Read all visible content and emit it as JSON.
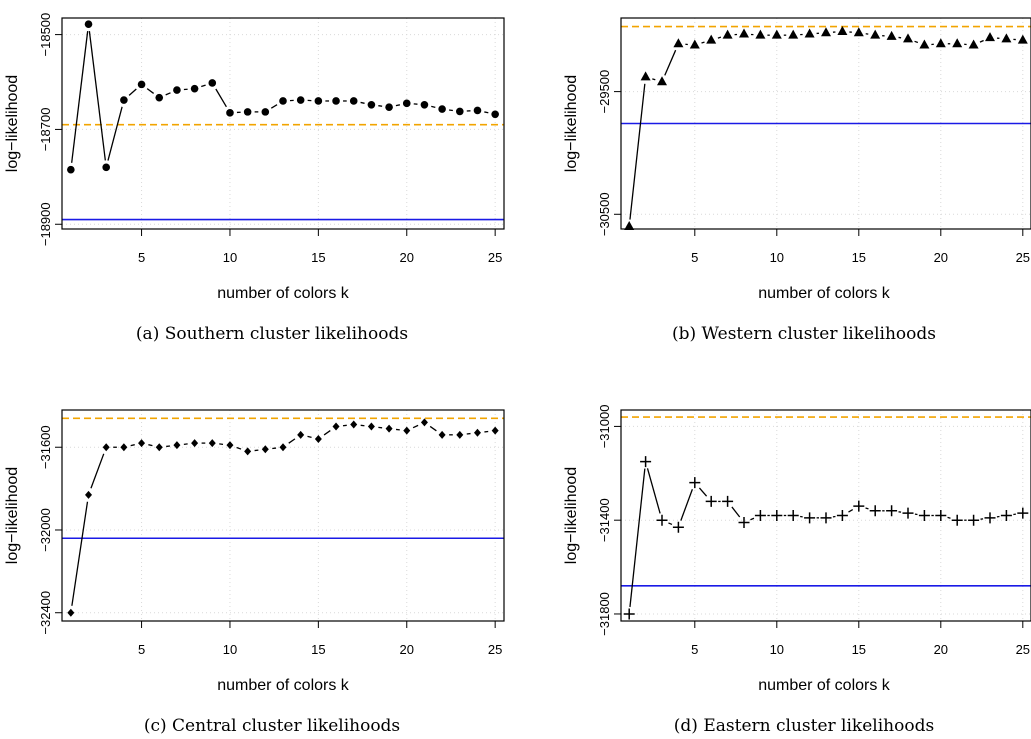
{
  "colors": {
    "reference_blue": "#1a1ae6",
    "reference_orange": "#f2a400",
    "points": "#000000",
    "grid": "#d9d9d9"
  },
  "chart_data": [
    {
      "type": "scatter",
      "caption": "(a) Southern cluster likelihoods",
      "xlabel": "number of colors k",
      "ylabel": "log−likelihood",
      "marker": "circle",
      "xlim": [
        0.5,
        25.5
      ],
      "ylim": [
        -18910,
        -18465
      ],
      "xticks": [
        5,
        10,
        15,
        20,
        25
      ],
      "xtick_labels": [
        "5",
        "10",
        "15",
        "20",
        "25"
      ],
      "yticks": [
        -18500,
        -18700,
        -18900
      ],
      "ytick_labels": [
        "−18500",
        "−18700",
        "−18900"
      ],
      "grid": true,
      "x": [
        1,
        2,
        3,
        4,
        5,
        6,
        7,
        8,
        9,
        10,
        11,
        12,
        13,
        14,
        15,
        16,
        17,
        18,
        19,
        20,
        21,
        22,
        23,
        24,
        25
      ],
      "y": [
        -18785,
        -18478,
        -18780,
        -18638,
        -18605,
        -18633,
        -18617,
        -18614,
        -18602,
        -18665,
        -18663,
        -18663,
        -18640,
        -18638,
        -18640,
        -18640,
        -18640,
        -18648,
        -18653,
        -18645,
        -18648,
        -18657,
        -18662,
        -18660,
        -18668
      ],
      "reference_lines": {
        "solid_blue": -18890,
        "dashed_orange": -18690
      }
    },
    {
      "type": "scatter",
      "caption": "(b) Western cluster likelihoods",
      "xlabel": "number of colors k",
      "ylabel": "log−likelihood",
      "marker": "triangle",
      "xlim": [
        0.5,
        25.5
      ],
      "ylim": [
        -30620,
        -28900
      ],
      "xticks": [
        5,
        10,
        15,
        20,
        25
      ],
      "xtick_labels": [
        "5",
        "10",
        "15",
        "20",
        "25"
      ],
      "yticks": [
        -29500,
        -30500
      ],
      "ytick_labels": [
        "−29500",
        "−30500"
      ],
      "grid": true,
      "x": [
        1,
        2,
        3,
        4,
        5,
        6,
        7,
        8,
        9,
        10,
        11,
        12,
        13,
        14,
        15,
        16,
        17,
        18,
        19,
        20,
        21,
        22,
        23,
        24,
        25
      ],
      "y": [
        -30600,
        -29380,
        -29420,
        -29110,
        -29120,
        -29080,
        -29040,
        -29030,
        -29040,
        -29040,
        -29040,
        -29030,
        -29020,
        -29010,
        -29020,
        -29040,
        -29050,
        -29070,
        -29120,
        -29110,
        -29110,
        -29120,
        -29060,
        -29070,
        -29080
      ],
      "reference_lines": {
        "solid_blue": -29760,
        "dashed_orange": -28970
      }
    },
    {
      "type": "scatter",
      "caption": "(c) Central cluster likelihoods",
      "xlabel": "number of colors k",
      "ylabel": "log−likelihood",
      "marker": "diamond",
      "xlim": [
        0.5,
        25.5
      ],
      "ylim": [
        -32440,
        -31420
      ],
      "xticks": [
        5,
        10,
        15,
        20,
        25
      ],
      "xtick_labels": [
        "5",
        "10",
        "15",
        "20",
        "25"
      ],
      "yticks": [
        -31600,
        -32000,
        -32400
      ],
      "ytick_labels": [
        "−31600",
        "−32000",
        "−32400"
      ],
      "grid": true,
      "x": [
        1,
        2,
        3,
        4,
        5,
        6,
        7,
        8,
        9,
        10,
        11,
        12,
        13,
        14,
        15,
        16,
        17,
        18,
        19,
        20,
        21,
        22,
        23,
        24,
        25
      ],
      "y": [
        -32400,
        -31830,
        -31600,
        -31600,
        -31580,
        -31600,
        -31590,
        -31580,
        -31580,
        -31590,
        -31620,
        -31610,
        -31600,
        -31540,
        -31560,
        -31500,
        -31490,
        -31500,
        -31510,
        -31520,
        -31480,
        -31540,
        -31540,
        -31530,
        -31520
      ],
      "reference_lines": {
        "solid_blue": -32040,
        "dashed_orange": -31460
      }
    },
    {
      "type": "scatter",
      "caption": "(d) Eastern cluster likelihoods",
      "xlabel": "number of colors k",
      "ylabel": "log−likelihood",
      "marker": "plus",
      "xlim": [
        0.5,
        25.5
      ],
      "ylim": [
        -31830,
        -30930
      ],
      "xticks": [
        5,
        10,
        15,
        20,
        25
      ],
      "xtick_labels": [
        "5",
        "10",
        "15",
        "20",
        "25"
      ],
      "yticks": [
        -31000,
        -31400,
        -31800
      ],
      "ytick_labels": [
        "−31000",
        "−31400",
        "−31800"
      ],
      "grid": true,
      "x": [
        1,
        2,
        3,
        4,
        5,
        6,
        7,
        8,
        9,
        10,
        11,
        12,
        13,
        14,
        15,
        16,
        17,
        18,
        19,
        20,
        21,
        22,
        23,
        24,
        25
      ],
      "y": [
        -31800,
        -31150,
        -31400,
        -31430,
        -31240,
        -31320,
        -31320,
        -31410,
        -31380,
        -31380,
        -31380,
        -31390,
        -31390,
        -31380,
        -31340,
        -31360,
        -31360,
        -31370,
        -31380,
        -31380,
        -31400,
        -31400,
        -31390,
        -31380,
        -31370
      ],
      "reference_lines": {
        "solid_blue": -31680,
        "dashed_orange": -30960
      }
    }
  ]
}
